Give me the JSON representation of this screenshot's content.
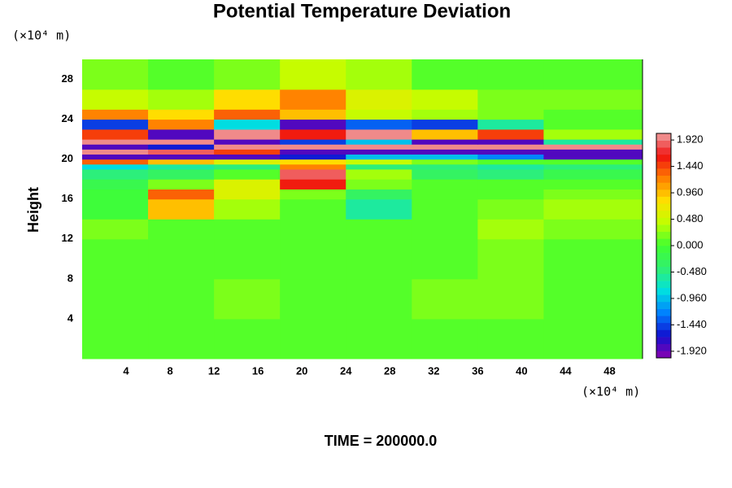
{
  "chart_data": {
    "type": "heatmap",
    "title": "Potential Temperature Deviation",
    "ylabel": "Height",
    "yunit": "(×10⁴ m)",
    "xunit": "(×10⁴ m)",
    "footer": "TIME = 200000.0",
    "xlim": [
      0,
      51
    ],
    "ylim": [
      0,
      30
    ],
    "xticks": [
      4,
      8,
      12,
      16,
      20,
      24,
      28,
      32,
      36,
      40,
      44,
      48
    ],
    "yticks": [
      4,
      8,
      12,
      16,
      20,
      24,
      28
    ],
    "x_edges": [
      0,
      6,
      12,
      18,
      24,
      30,
      36,
      42,
      51
    ],
    "y_edges": [
      0,
      4,
      8,
      12,
      14,
      16,
      17,
      18,
      19,
      19.5,
      20,
      20.5,
      21,
      21.5,
      22,
      23,
      24,
      25,
      27,
      30
    ],
    "z": [
      [
        0.1,
        0.1,
        0.1,
        0.1,
        0.1,
        0.1,
        0.1,
        0.1
      ],
      [
        0.1,
        0.1,
        0.2,
        0.1,
        0.1,
        0.2,
        0.2,
        0.1
      ],
      [
        0.1,
        0.1,
        0.1,
        0.1,
        0.1,
        0.1,
        0.2,
        0.1
      ],
      [
        0.2,
        0.1,
        0.1,
        0.1,
        0.1,
        0.1,
        0.3,
        0.2
      ],
      [
        -0.1,
        0.9,
        0.3,
        0,
        -0.6,
        0.1,
        0.2,
        0.3
      ],
      [
        -0.1,
        1.4,
        0.6,
        0.2,
        -0.3,
        0,
        0.1,
        0.2
      ],
      [
        -0.2,
        0.2,
        0.6,
        1.6,
        0.2,
        0,
        0,
        0
      ],
      [
        -0.5,
        -0.3,
        0,
        1.9,
        0.3,
        -0.3,
        -0.4,
        -0.2
      ],
      [
        -0.8,
        -0.6,
        -0.4,
        1.2,
        -0.5,
        -0.5,
        -0.6,
        -0.4
      ],
      [
        1.4,
        1.0,
        0.6,
        0.8,
        0.4,
        0.2,
        0.1,
        0
      ],
      [
        -1.9,
        -1.9,
        -1.9,
        -1.6,
        -1.0,
        -1.0,
        -1.2,
        -1.9
      ],
      [
        2.0,
        1.8,
        1.5,
        -1.9,
        -1.9,
        -1.9,
        -1.9,
        -1.9
      ],
      [
        -1.9,
        -1.6,
        2.0,
        2.0,
        2.0,
        2.0,
        2.0,
        2.0
      ],
      [
        2.0,
        2.0,
        -1.9,
        -1.5,
        -1.0,
        -1.9,
        -1.9,
        -0.6
      ],
      [
        1.5,
        -1.9,
        2.0,
        1.6,
        2.0,
        1.0,
        1.5,
        0.3
      ],
      [
        -1.5,
        1.2,
        -0.8,
        -1.9,
        -1.4,
        -1.5,
        -0.6,
        0
      ],
      [
        1.2,
        0.8,
        1.4,
        1.0,
        0.4,
        0.3,
        0.2,
        0
      ],
      [
        0.5,
        0.3,
        0.8,
        1.2,
        0.6,
        0.4,
        0.2,
        0.2
      ],
      [
        0.2,
        0.1,
        0.2,
        0.4,
        0.3,
        0.1,
        0.1,
        0.1
      ]
    ],
    "colorbar": {
      "lim": [
        -2.04,
        2.04
      ],
      "ticks": [
        {
          "value": 1.92,
          "label": "1.920"
        },
        {
          "value": 1.44,
          "label": "1.440"
        },
        {
          "value": 0.96,
          "label": "0.960"
        },
        {
          "value": 0.48,
          "label": "0.480"
        },
        {
          "value": 0,
          "label": "0.000"
        },
        {
          "value": -0.48,
          "label": "-0.480"
        },
        {
          "value": -0.96,
          "label": "-0.960"
        },
        {
          "value": -1.44,
          "label": "-1.440"
        },
        {
          "value": -1.92,
          "label": "-1.920"
        }
      ],
      "colors": [
        "#8a00b0",
        "#1010d0",
        "#0080ff",
        "#00e0e0",
        "#30f070",
        "#40ff30",
        "#c0ff00",
        "#ffe000",
        "#ff8000",
        "#f01010",
        "#f0a0a0"
      ]
    }
  }
}
